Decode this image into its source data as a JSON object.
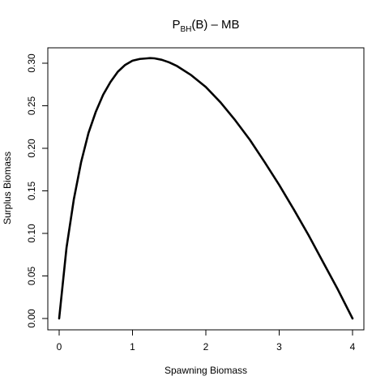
{
  "chart_data": {
    "type": "line",
    "title": {
      "prefix": "P",
      "subscript": "BH",
      "suffix": "(B) – MB"
    },
    "xlabel": "Spawning Biomass",
    "ylabel": "Surplus Biomass",
    "xlim": [
      0,
      4
    ],
    "ylim": [
      0,
      0.3
    ],
    "xticks": [
      0,
      1,
      2,
      3,
      4
    ],
    "xtick_labels": [
      "0",
      "1",
      "2",
      "3",
      "4"
    ],
    "yticks": [
      0.0,
      0.05,
      0.1,
      0.15,
      0.2,
      0.25,
      0.3
    ],
    "ytick_labels": [
      "0.00",
      "0.05",
      "0.10",
      "0.15",
      "0.20",
      "0.25",
      "0.30"
    ],
    "grid": false,
    "series": [
      {
        "color": "#000000",
        "x": [
          0,
          0.1,
          0.2,
          0.3,
          0.4,
          0.5,
          0.6,
          0.7,
          0.8,
          0.9,
          1.0,
          1.1,
          1.2,
          1.24,
          1.3,
          1.4,
          1.5,
          1.6,
          1.8,
          2.0,
          2.2,
          2.4,
          2.6,
          2.8,
          3.0,
          3.2,
          3.4,
          3.6,
          3.8,
          4.0
        ],
        "y": [
          0,
          0.083,
          0.14,
          0.184,
          0.218,
          0.243,
          0.263,
          0.278,
          0.29,
          0.298,
          0.303,
          0.305,
          0.3057,
          0.306,
          0.3057,
          0.304,
          0.301,
          0.297,
          0.286,
          0.272,
          0.254,
          0.233,
          0.21,
          0.184,
          0.157,
          0.128,
          0.098,
          0.066,
          0.034,
          0
        ]
      }
    ]
  }
}
